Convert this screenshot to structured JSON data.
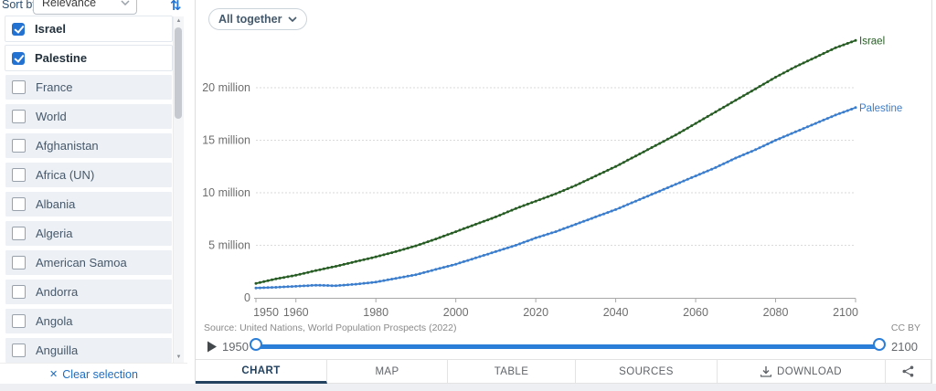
{
  "sidebar": {
    "sort_label": "Sort by",
    "sort_value": "Relevance",
    "clear_label": "Clear selection",
    "entities": [
      {
        "label": "Israel",
        "checked": true
      },
      {
        "label": "Palestine",
        "checked": true
      },
      {
        "label": "France",
        "checked": false
      },
      {
        "label": "World",
        "checked": false
      },
      {
        "label": "Afghanistan",
        "checked": false
      },
      {
        "label": "Africa (UN)",
        "checked": false
      },
      {
        "label": "Albania",
        "checked": false
      },
      {
        "label": "Algeria",
        "checked": false
      },
      {
        "label": "American Samoa",
        "checked": false
      },
      {
        "label": "Andorra",
        "checked": false
      },
      {
        "label": "Angola",
        "checked": false
      },
      {
        "label": "Anguilla",
        "checked": false
      }
    ]
  },
  "toolbar": {
    "grouping_label": "All together"
  },
  "chart_data": {
    "type": "line",
    "title": "",
    "xlabel": "",
    "ylabel": "",
    "unit": "million",
    "grid": true,
    "legend_position": "line-end-labels",
    "xlim": [
      1950,
      2100
    ],
    "ylim": [
      0,
      25
    ],
    "x": [
      1950,
      1955,
      1960,
      1965,
      1970,
      1975,
      1980,
      1985,
      1990,
      1995,
      2000,
      2005,
      2010,
      2015,
      2020,
      2025,
      2030,
      2035,
      2040,
      2045,
      2050,
      2055,
      2060,
      2065,
      2070,
      2075,
      2080,
      2085,
      2090,
      2095,
      2100
    ],
    "x_ticks": [
      1950,
      1960,
      1980,
      2000,
      2020,
      2040,
      2060,
      2080,
      2100
    ],
    "y_ticks": [
      {
        "value": 0,
        "label": "0"
      },
      {
        "value": 5,
        "label": "5 million"
      },
      {
        "value": 10,
        "label": "10 million"
      },
      {
        "value": 15,
        "label": "15 million"
      },
      {
        "value": 20,
        "label": "20 million"
      }
    ],
    "series": [
      {
        "name": "Israel",
        "color": "#265c23",
        "values": [
          1.37,
          1.8,
          2.15,
          2.6,
          3.0,
          3.45,
          3.9,
          4.4,
          4.95,
          5.6,
          6.3,
          7.0,
          7.7,
          8.5,
          9.2,
          9.9,
          10.7,
          11.6,
          12.5,
          13.5,
          14.5,
          15.5,
          16.6,
          17.7,
          18.8,
          19.9,
          21.0,
          22.0,
          22.9,
          23.8,
          24.5
        ]
      },
      {
        "name": "Palestine",
        "color": "#3b7dcd",
        "values": [
          0.94,
          1.0,
          1.1,
          1.2,
          1.15,
          1.3,
          1.5,
          1.85,
          2.2,
          2.7,
          3.2,
          3.8,
          4.4,
          5.0,
          5.7,
          6.3,
          7.0,
          7.7,
          8.4,
          9.2,
          10.0,
          10.8,
          11.6,
          12.4,
          13.3,
          14.1,
          15.0,
          15.8,
          16.6,
          17.4,
          18.1
        ]
      }
    ]
  },
  "source": {
    "text": "Source: United Nations, World Population Prospects (2022)",
    "license": "CC BY"
  },
  "timeline": {
    "start_label": "1950",
    "end_label": "2100"
  },
  "footer": {
    "tabs": [
      {
        "label": "CHART",
        "active": true,
        "icon": ""
      },
      {
        "label": "MAP",
        "active": false,
        "icon": ""
      },
      {
        "label": "TABLE",
        "active": false,
        "icon": ""
      },
      {
        "label": "SOURCES",
        "active": false,
        "icon": ""
      },
      {
        "label": "DOWNLOAD",
        "active": false,
        "icon": "download"
      },
      {
        "label": "",
        "active": false,
        "icon": "share"
      }
    ]
  },
  "colors": {
    "accent_blue": "#2b7ed8",
    "checkbox_blue": "#2372d2",
    "active_tab": "#23425f"
  }
}
